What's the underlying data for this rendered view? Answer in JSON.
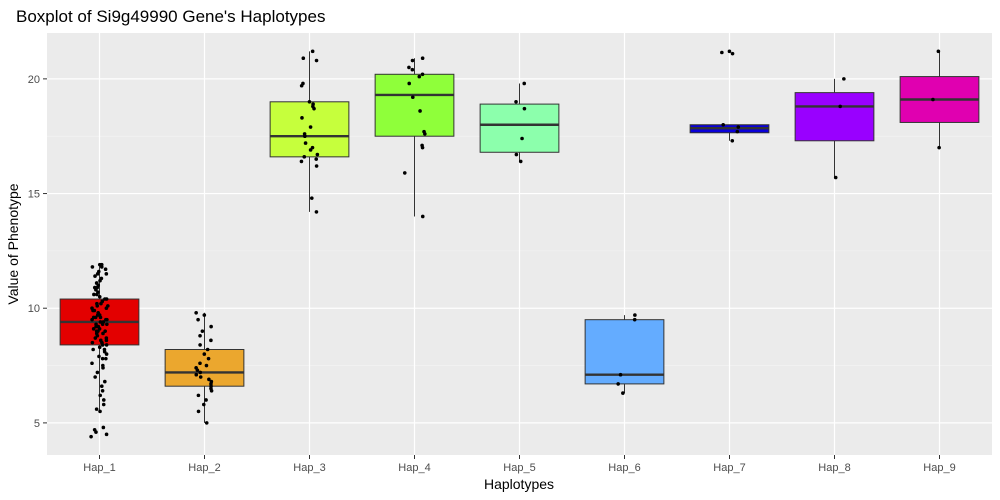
{
  "chart_data": {
    "type": "boxplot",
    "title": "Boxplot of Si9g49990 Gene's Haplotypes",
    "xlabel": "Haplotypes",
    "ylabel": "Value of Phenotype",
    "ylim": [
      3.6,
      22.0
    ],
    "yticks": [
      5,
      10,
      15,
      20
    ],
    "grid": true,
    "categories": [
      "Hap_1",
      "Hap_2",
      "Hap_3",
      "Hap_4",
      "Hap_5",
      "Hap_6",
      "Hap_7",
      "Hap_8",
      "Hap_9"
    ],
    "boxes": [
      {
        "category": "Hap_1",
        "color": "#e30000",
        "min": 5.5,
        "q1": 8.4,
        "median": 9.4,
        "q3": 10.4,
        "max": 11.9,
        "outliers": [
          4.4,
          4.5,
          4.6,
          4.7,
          4.8
        ]
      },
      {
        "category": "Hap_2",
        "color": "#eba72e",
        "min": 5.0,
        "q1": 6.6,
        "median": 7.2,
        "q3": 8.2,
        "max": 9.8,
        "outliers": []
      },
      {
        "category": "Hap_3",
        "color": "#c6ff3c",
        "min": 14.2,
        "q1": 16.6,
        "median": 17.5,
        "q3": 19.0,
        "max": 21.2,
        "outliers": []
      },
      {
        "category": "Hap_4",
        "color": "#8fff3a",
        "min": 14.0,
        "q1": 17.5,
        "median": 19.3,
        "q3": 20.2,
        "max": 20.9,
        "outliers": []
      },
      {
        "category": "Hap_5",
        "color": "#8cffac",
        "min": 16.4,
        "q1": 16.8,
        "median": 18.0,
        "q3": 18.9,
        "max": 19.8,
        "outliers": []
      },
      {
        "category": "Hap_6",
        "color": "#64acff",
        "min": 6.3,
        "q1": 6.7,
        "median": 7.1,
        "q3": 9.5,
        "max": 9.7,
        "outliers": []
      },
      {
        "category": "Hap_7",
        "color": "#0a00d8",
        "min": 17.3,
        "q1": 17.65,
        "median": 17.85,
        "q3": 18.0,
        "max": 18.0,
        "outliers": [
          21.1,
          21.15,
          21.2
        ]
      },
      {
        "category": "Hap_8",
        "color": "#9900ff",
        "min": 15.7,
        "q1": 17.3,
        "median": 18.8,
        "q3": 19.4,
        "max": 20.0,
        "outliers": []
      },
      {
        "category": "Hap_9",
        "color": "#e000b0",
        "min": 17.0,
        "q1": 18.1,
        "median": 19.1,
        "q3": 20.1,
        "max": 21.2,
        "outliers": []
      }
    ],
    "points": {
      "Hap_1": [
        4.4,
        4.5,
        4.6,
        4.7,
        4.8,
        5.5,
        5.6,
        5.8,
        6.0,
        6.2,
        6.4,
        6.6,
        6.8,
        7.0,
        7.2,
        7.4,
        7.5,
        7.6,
        7.8,
        7.9,
        8.0,
        8.1,
        8.2,
        8.3,
        8.4,
        8.4,
        8.5,
        8.6,
        8.6,
        8.7,
        8.8,
        8.9,
        9.0,
        9.0,
        9.1,
        9.2,
        9.2,
        9.3,
        9.3,
        9.4,
        9.4,
        9.5,
        9.5,
        9.6,
        9.6,
        9.7,
        9.8,
        9.9,
        10.0,
        10.0,
        10.1,
        10.2,
        10.3,
        10.4,
        10.5,
        10.6,
        10.7,
        10.8,
        10.9,
        11.0,
        11.1,
        11.2,
        11.3,
        11.4,
        11.5,
        11.6,
        11.7,
        11.8,
        11.9,
        11.9,
        9.1,
        9.3,
        9.5,
        9.7,
        8.9,
        8.7,
        10.2,
        10.6,
        11.1,
        11.5,
        8.2,
        7.8,
        9.9,
        10.4,
        11.8,
        9.0,
        9.6,
        8.5,
        10.1,
        10.9
      ],
      "Hap_2": [
        5.0,
        5.5,
        5.8,
        6.0,
        6.2,
        6.4,
        6.5,
        6.6,
        6.7,
        6.8,
        6.9,
        7.0,
        7.1,
        7.2,
        7.3,
        7.4,
        7.5,
        7.6,
        7.8,
        8.0,
        8.2,
        8.4,
        8.6,
        8.8,
        9.0,
        9.2,
        9.5,
        9.7,
        9.8
      ],
      "Hap_3": [
        14.2,
        14.8,
        16.2,
        16.4,
        16.5,
        16.6,
        16.7,
        16.9,
        17.0,
        17.2,
        17.5,
        17.6,
        17.9,
        18.3,
        18.7,
        18.8,
        18.9,
        19.0,
        19.7,
        19.8,
        20.8,
        20.9,
        21.2
      ],
      "Hap_4": [
        14.0,
        15.9,
        17.0,
        17.1,
        17.6,
        17.7,
        18.6,
        19.2,
        19.8,
        20.1,
        20.2,
        20.4,
        20.5,
        20.8,
        20.9
      ],
      "Hap_5": [
        16.4,
        16.7,
        17.4,
        18.7,
        19.0,
        19.8
      ],
      "Hap_6": [
        6.3,
        6.7,
        7.1,
        9.5,
        9.7
      ],
      "Hap_7": [
        17.3,
        17.7,
        17.9,
        18.0,
        21.1,
        21.15,
        21.2
      ],
      "Hap_8": [
        15.7,
        18.8,
        20.0
      ],
      "Hap_9": [
        17.0,
        19.1,
        21.2
      ]
    }
  }
}
